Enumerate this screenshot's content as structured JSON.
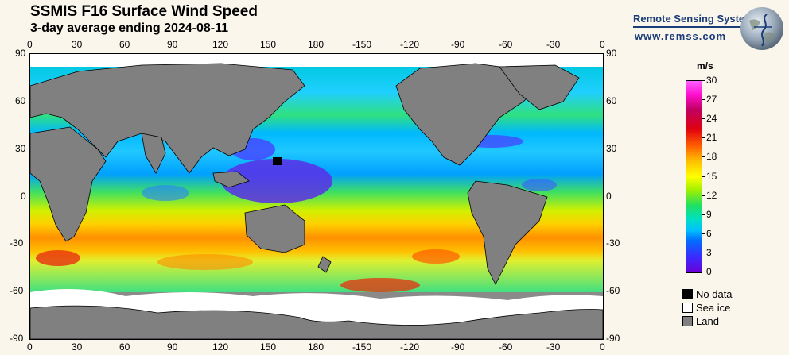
{
  "title": "SSMIS F16 Surface Wind Speed",
  "subtitle": "3-day average ending 2024-08-11",
  "brand": {
    "name": "Remote Sensing Systems",
    "url": "www.remss.com"
  },
  "map": {
    "lon_ticks": [
      "0",
      "30",
      "60",
      "90",
      "120",
      "150",
      "180",
      "-150",
      "-120",
      "-90",
      "-60",
      "-30",
      "0"
    ],
    "lat_ticks": [
      "90",
      "60",
      "30",
      "0",
      "-30",
      "-60",
      "-90"
    ]
  },
  "colorbar": {
    "unit": "m/s",
    "ticks": [
      "30",
      "27",
      "24",
      "21",
      "18",
      "15",
      "12",
      "9",
      "6",
      "3",
      "0"
    ],
    "colors": {
      "low": "#6a00d8",
      "mid": "#ffff00",
      "high": "#ff60ff"
    }
  },
  "legend": [
    {
      "label": "No data",
      "color": "#000000"
    },
    {
      "label": "Sea ice",
      "color": "#ffffff"
    },
    {
      "label": "Land",
      "color": "#808080"
    }
  ]
}
